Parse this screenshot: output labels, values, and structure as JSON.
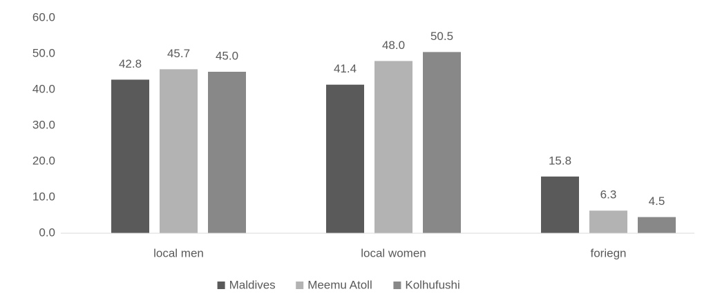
{
  "chart_data": {
    "type": "bar",
    "categories": [
      "local men",
      "local women",
      "foriegn"
    ],
    "series": [
      {
        "name": "Maldives",
        "color": "#5a5a5a",
        "values": [
          42.8,
          41.4,
          15.8
        ],
        "value_labels": [
          "42.8",
          "41.4",
          "15.8"
        ]
      },
      {
        "name": "Meemu Atoll",
        "color": "#b3b3b3",
        "values": [
          45.7,
          48.0,
          6.3
        ],
        "value_labels": [
          "45.7",
          "48.0",
          "6.3"
        ]
      },
      {
        "name": "Kolhufushi",
        "color": "#888888",
        "values": [
          45.0,
          50.5,
          4.5
        ],
        "value_labels": [
          "45.0",
          "50.5",
          "4.5"
        ]
      }
    ],
    "ylim": [
      0,
      60
    ],
    "yticks": [
      {
        "value": 0,
        "label": "0.0"
      },
      {
        "value": 10,
        "label": "10.0"
      },
      {
        "value": 20,
        "label": "20.0"
      },
      {
        "value": 30,
        "label": "30.0"
      },
      {
        "value": 40,
        "label": "40.0"
      },
      {
        "value": 50,
        "label": "50.0"
      },
      {
        "value": 60,
        "label": "60.0"
      }
    ],
    "grid": false,
    "legend": "bottom"
  }
}
